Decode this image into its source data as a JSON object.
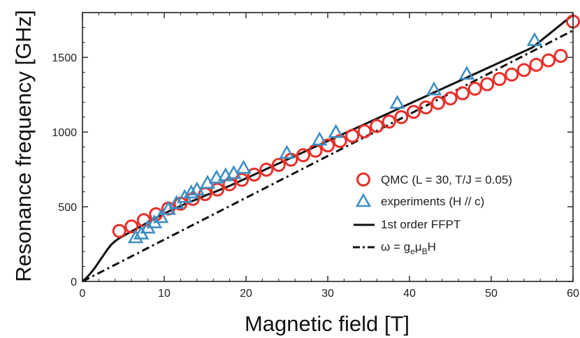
{
  "chart_data": {
    "type": "scatter",
    "title": "",
    "xlabel": "Magnetic field [T]",
    "ylabel": "Resonance frequency [GHz]",
    "xlim": [
      0,
      60
    ],
    "ylim": [
      0,
      1800
    ],
    "xticks": [
      0,
      10,
      20,
      30,
      40,
      50,
      60
    ],
    "yticks": [
      0,
      500,
      1000,
      1500
    ],
    "grid": false,
    "legend_position": "center-right",
    "series": [
      {
        "name": "QMC (L = 30, T/J = 0.05)",
        "kind": "markers",
        "marker": "circle",
        "color": "#e8302a",
        "x": [
          4.5,
          6,
          7.5,
          9,
          10.5,
          12,
          13.5,
          15,
          16.5,
          18,
          19.5,
          21,
          22.5,
          24,
          25.5,
          27,
          28.5,
          30,
          31.5,
          33,
          34.5,
          36,
          37.5,
          39,
          40.5,
          42,
          43.5,
          45,
          46.5,
          48,
          49.5,
          51,
          52.5,
          54,
          55.5,
          57,
          58.5,
          60
        ],
        "y": [
          338,
          368,
          410,
          450,
          488,
          520,
          552,
          585,
          615,
          650,
          680,
          715,
          748,
          780,
          815,
          845,
          875,
          910,
          940,
          975,
          1005,
          1040,
          1070,
          1100,
          1135,
          1165,
          1195,
          1225,
          1260,
          1290,
          1320,
          1355,
          1385,
          1415,
          1450,
          1480,
          1510,
          1740
        ]
      },
      {
        "name": "experiments (H // c)",
        "kind": "markers",
        "marker": "triangle",
        "color": "#3d8fc4",
        "x": [
          6.5,
          7.2,
          8,
          8.8,
          9.6,
          10.5,
          11.5,
          12.5,
          13.3,
          14,
          15.3,
          16.4,
          17.5,
          18.5,
          19.7,
          25,
          29,
          31,
          38.5,
          43,
          47,
          55.3
        ],
        "y": [
          290,
          315,
          355,
          390,
          425,
          480,
          520,
          560,
          590,
          610,
          655,
          690,
          705,
          720,
          755,
          855,
          945,
          995,
          1190,
          1280,
          1385,
          1610
        ]
      },
      {
        "name": "1st order FFPT",
        "kind": "line",
        "style": "solid",
        "color": "#111111",
        "x": [
          0,
          0.5,
          1,
          1.5,
          2,
          2.5,
          3,
          3.5,
          4,
          4.5,
          5,
          6,
          7,
          8,
          9,
          10,
          11,
          12,
          13,
          14,
          15,
          16,
          18,
          20,
          22,
          25,
          30,
          35,
          40,
          45,
          50,
          55,
          60
        ],
        "y": [
          0,
          25,
          55,
          90,
          130,
          170,
          210,
          245,
          270,
          290,
          305,
          335,
          365,
          395,
          425,
          455,
          480,
          505,
          530,
          550,
          575,
          595,
          640,
          690,
          740,
          815,
          940,
          1065,
          1190,
          1315,
          1440,
          1565,
          1785
        ]
      },
      {
        "name": "ω = g_e μ_B H",
        "kind": "line",
        "style": "dashdot",
        "color": "#111111",
        "x": [
          0,
          60
        ],
        "y": [
          0,
          1680
        ]
      }
    ]
  },
  "legend": {
    "qmc": "QMC (L = 30, T/J = 0.05)",
    "experiments": "experiments (H // c)",
    "ffpt": "1st order FFPT",
    "omega_prefix": "ω =  g",
    "omega_sub1": "e",
    "omega_mid": "μ",
    "omega_sub2": "B",
    "omega_suffix": "H"
  }
}
